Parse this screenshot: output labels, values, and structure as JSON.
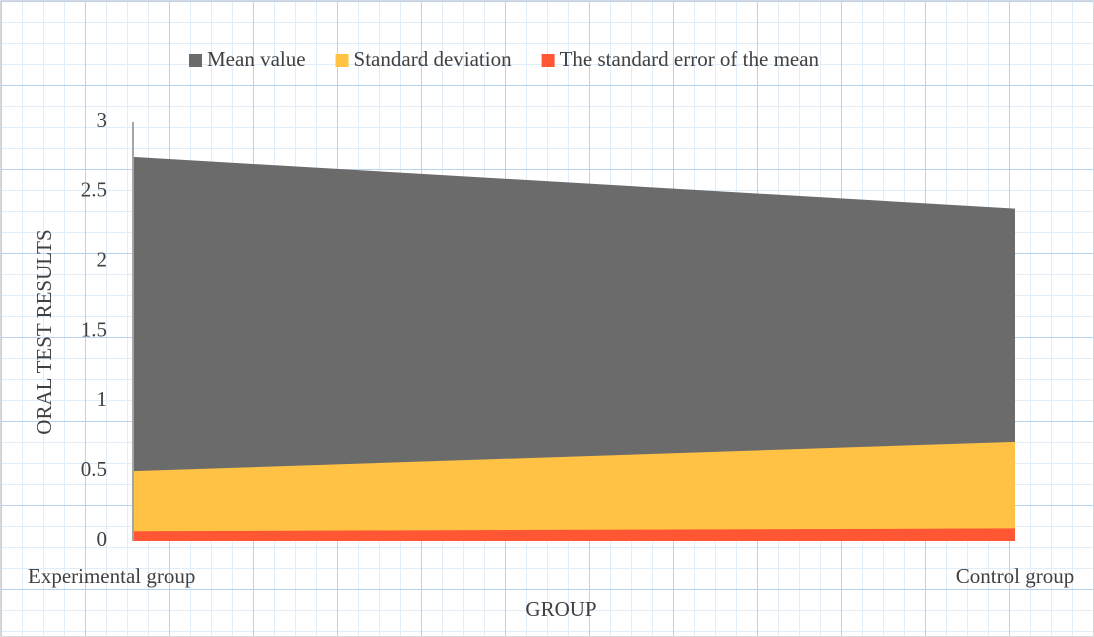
{
  "chart_data": {
    "type": "area",
    "categories": [
      "Experimental group",
      "Control group"
    ],
    "series": [
      {
        "name": "Mean value",
        "color": "#6b6b6b",
        "values": [
          2.75,
          2.38
        ]
      },
      {
        "name": "Standard deviation",
        "color": "#ffc244",
        "values": [
          0.5,
          0.71
        ]
      },
      {
        "name": "The standard error of the mean",
        "color": "#ff5733",
        "values": [
          0.07,
          0.09
        ]
      }
    ],
    "ylim": [
      0,
      3
    ],
    "yticks": [
      0,
      0.5,
      1,
      1.5,
      2,
      2.5,
      3
    ],
    "xlabel": "GROUP",
    "ylabel": "ORAL TEST RESULTS",
    "legend": "top"
  }
}
